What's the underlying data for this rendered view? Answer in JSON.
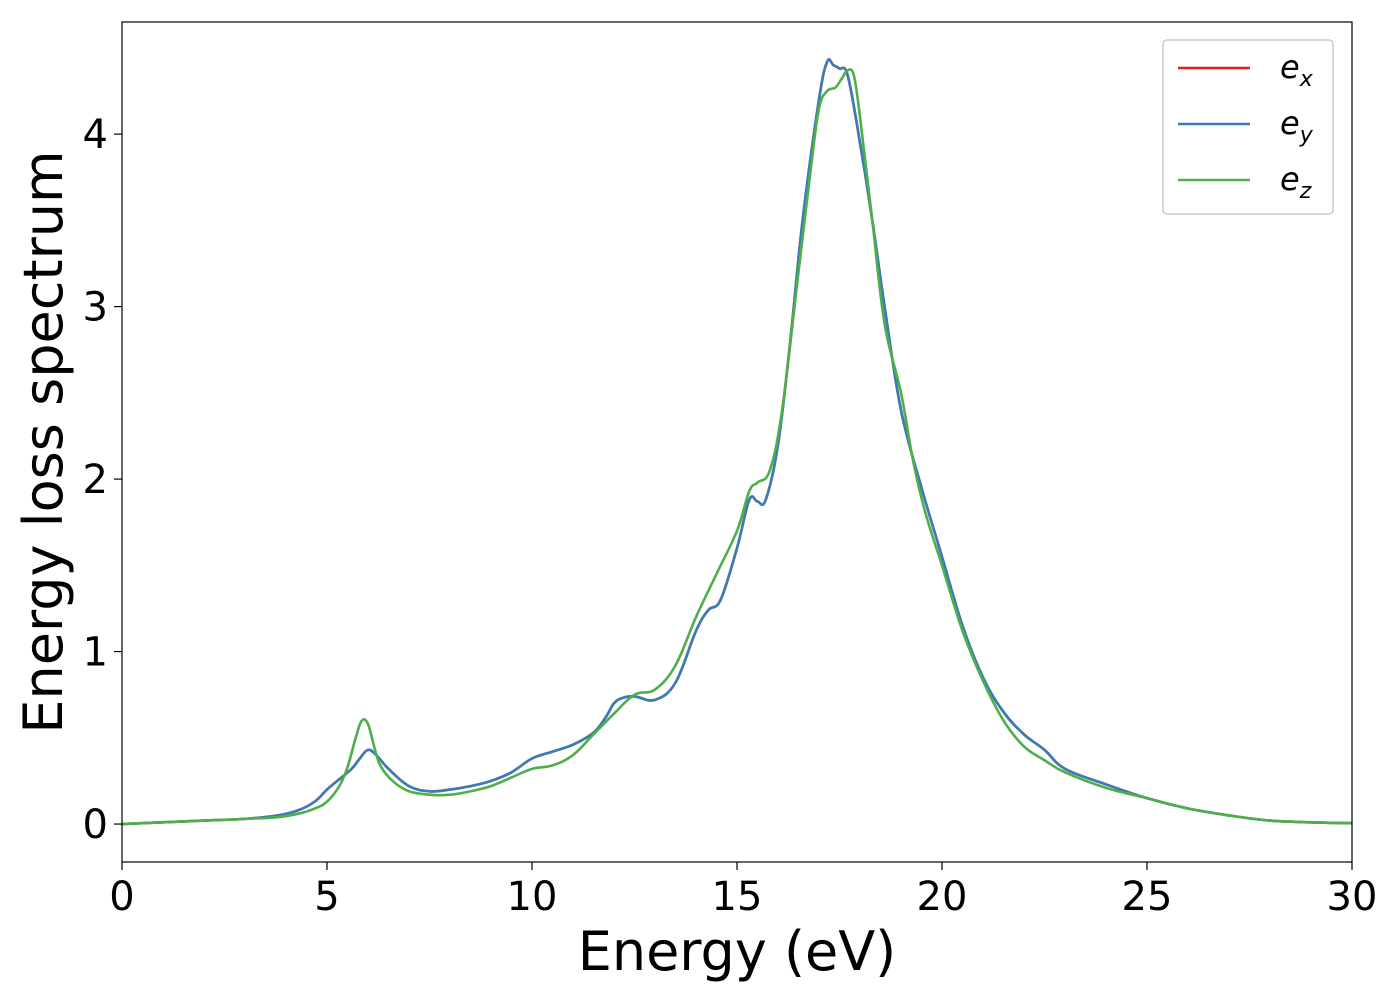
{
  "chart_data": {
    "type": "line",
    "xlabel": "Energy (eV)",
    "ylabel": "Energy loss spectrum",
    "xlim": [
      0,
      30
    ],
    "ylim": [
      -0.22,
      4.65
    ],
    "x_ticks": [
      0,
      5,
      10,
      15,
      20,
      25,
      30
    ],
    "y_ticks": [
      0,
      1,
      2,
      3,
      4
    ],
    "grid": false,
    "legend_position": "top-right",
    "legend": [
      {
        "base": "e",
        "sub": "x",
        "color": "#e41a1c"
      },
      {
        "base": "e",
        "sub": "y",
        "color": "#377eb8"
      },
      {
        "base": "e",
        "sub": "z",
        "color": "#4daf4a"
      }
    ],
    "series": [
      {
        "name": "e_x",
        "color": "#e41a1c",
        "x": [
          0,
          1,
          2,
          3,
          3.8,
          4.3,
          4.7,
          5,
          5.3,
          5.6,
          5.8,
          6,
          6.2,
          6.5,
          7,
          7.5,
          8,
          8.5,
          9,
          9.5,
          10,
          10.5,
          11,
          11.5,
          11.8,
          12,
          12.2,
          12.5,
          13,
          13.5,
          14,
          14.3,
          14.6,
          15,
          15.3,
          15.5,
          15.7,
          16,
          16.3,
          16.6,
          17,
          17.2,
          17.35,
          17.5,
          17.7,
          18,
          18.3,
          18.6,
          19,
          19.5,
          20,
          20.5,
          21,
          21.5,
          22,
          22.5,
          23,
          24,
          25,
          26,
          27,
          28,
          29,
          30
        ],
        "y": [
          0,
          0.01,
          0.02,
          0.03,
          0.05,
          0.08,
          0.13,
          0.2,
          0.26,
          0.32,
          0.38,
          0.43,
          0.4,
          0.32,
          0.22,
          0.19,
          0.2,
          0.22,
          0.25,
          0.3,
          0.38,
          0.42,
          0.46,
          0.53,
          0.62,
          0.7,
          0.73,
          0.74,
          0.72,
          0.82,
          1.12,
          1.24,
          1.3,
          1.6,
          1.88,
          1.87,
          1.88,
          2.2,
          2.8,
          3.5,
          4.2,
          4.42,
          4.4,
          4.38,
          4.34,
          3.95,
          3.5,
          3.0,
          2.4,
          1.95,
          1.55,
          1.15,
          0.85,
          0.65,
          0.52,
          0.43,
          0.32,
          0.23,
          0.15,
          0.09,
          0.05,
          0.02,
          0.01,
          0.005
        ]
      },
      {
        "name": "e_y",
        "color": "#377eb8",
        "x": [
          0,
          1,
          2,
          3,
          3.8,
          4.3,
          4.7,
          5,
          5.3,
          5.6,
          5.8,
          6,
          6.2,
          6.5,
          7,
          7.5,
          8,
          8.5,
          9,
          9.5,
          10,
          10.5,
          11,
          11.5,
          11.8,
          12,
          12.2,
          12.5,
          13,
          13.5,
          14,
          14.3,
          14.6,
          15,
          15.3,
          15.5,
          15.7,
          16,
          16.3,
          16.6,
          17,
          17.2,
          17.35,
          17.5,
          17.7,
          18,
          18.3,
          18.6,
          19,
          19.5,
          20,
          20.5,
          21,
          21.5,
          22,
          22.5,
          23,
          24,
          25,
          26,
          27,
          28,
          29,
          30
        ],
        "y": [
          0,
          0.01,
          0.02,
          0.03,
          0.05,
          0.08,
          0.13,
          0.2,
          0.26,
          0.32,
          0.38,
          0.43,
          0.4,
          0.32,
          0.22,
          0.19,
          0.2,
          0.22,
          0.25,
          0.3,
          0.38,
          0.42,
          0.46,
          0.53,
          0.62,
          0.7,
          0.73,
          0.74,
          0.72,
          0.82,
          1.12,
          1.24,
          1.3,
          1.6,
          1.88,
          1.87,
          1.88,
          2.2,
          2.8,
          3.5,
          4.2,
          4.42,
          4.4,
          4.38,
          4.34,
          3.95,
          3.5,
          3.0,
          2.4,
          1.95,
          1.55,
          1.15,
          0.85,
          0.65,
          0.52,
          0.43,
          0.32,
          0.23,
          0.15,
          0.09,
          0.05,
          0.02,
          0.01,
          0.005
        ]
      },
      {
        "name": "e_z",
        "color": "#4daf4a",
        "x": [
          0,
          1,
          2,
          3,
          3.8,
          4.3,
          4.7,
          5,
          5.3,
          5.5,
          5.7,
          5.85,
          6,
          6.15,
          6.3,
          6.6,
          7,
          7.5,
          8,
          8.5,
          9,
          9.5,
          10,
          10.5,
          11,
          11.5,
          12,
          12.5,
          13,
          13.5,
          14,
          14.5,
          15,
          15.3,
          15.5,
          15.8,
          16.1,
          16.5,
          16.8,
          17,
          17.2,
          17.4,
          17.55,
          17.7,
          17.85,
          18,
          18.3,
          18.6,
          19,
          19.3,
          19.6,
          20,
          20.5,
          21,
          21.5,
          22,
          22.5,
          23,
          24,
          25,
          26,
          27,
          28,
          29,
          30
        ],
        "y": [
          0,
          0.01,
          0.02,
          0.03,
          0.04,
          0.06,
          0.09,
          0.13,
          0.22,
          0.33,
          0.5,
          0.6,
          0.58,
          0.45,
          0.34,
          0.25,
          0.19,
          0.17,
          0.17,
          0.19,
          0.22,
          0.27,
          0.32,
          0.34,
          0.4,
          0.52,
          0.64,
          0.75,
          0.78,
          0.92,
          1.2,
          1.45,
          1.7,
          1.93,
          1.98,
          2.05,
          2.4,
          3.2,
          3.8,
          4.15,
          4.25,
          4.27,
          4.32,
          4.37,
          4.34,
          4.1,
          3.5,
          2.9,
          2.5,
          2.1,
          1.8,
          1.5,
          1.12,
          0.83,
          0.6,
          0.45,
          0.37,
          0.3,
          0.21,
          0.15,
          0.09,
          0.05,
          0.02,
          0.01,
          0.005
        ]
      }
    ]
  }
}
